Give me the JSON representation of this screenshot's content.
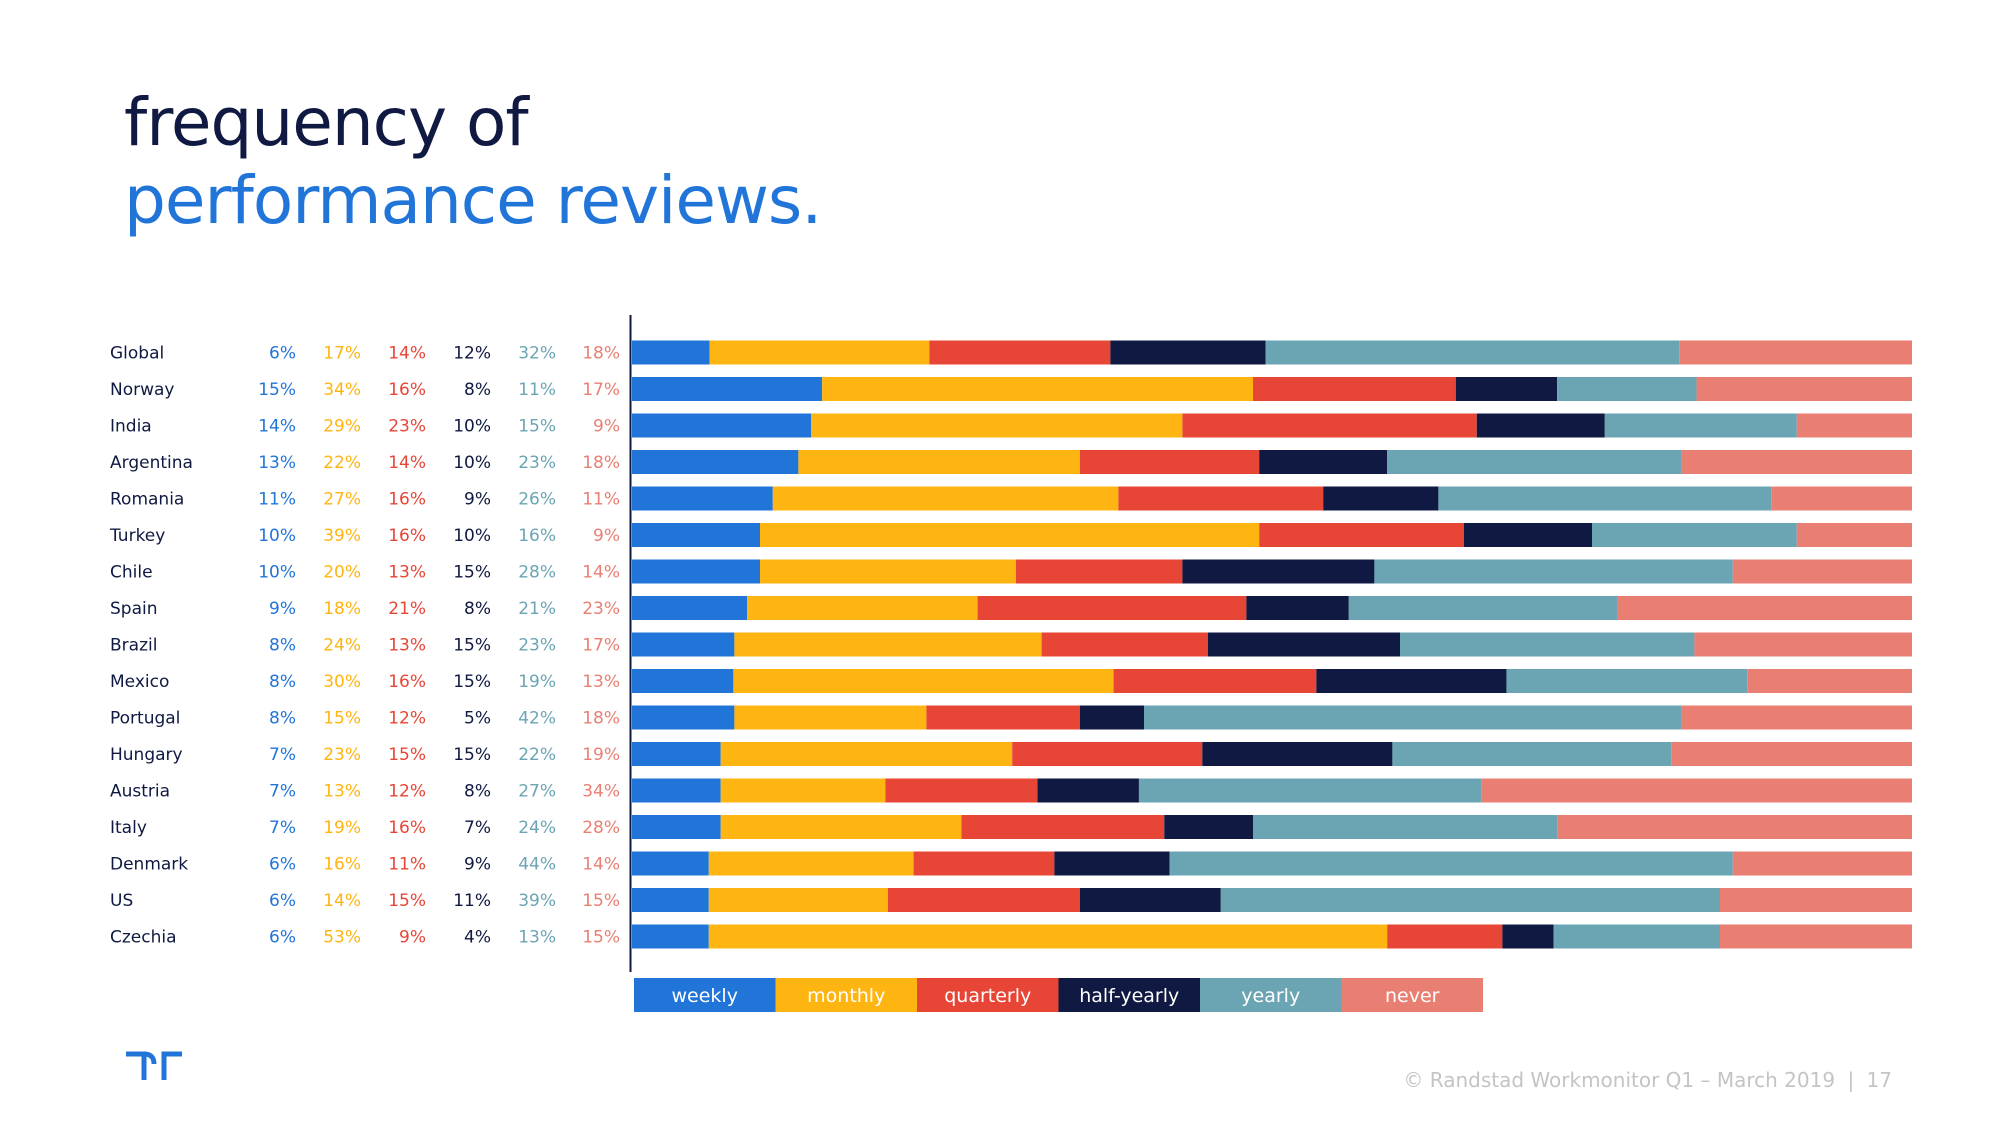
{
  "title": {
    "line1": "frequency of",
    "line2": "performance reviews."
  },
  "footer": {
    "text": "© Randstad Workmonitor Q1 – March 2019",
    "separator": "|",
    "page": "17"
  },
  "colors": {
    "weekly": "#2175d9",
    "monthly": "#ffb511",
    "quarterly": "#e74536",
    "half-yearly": "#0f1941",
    "yearly": "#6ba5b4",
    "never": "#e97f72"
  },
  "chart_data": {
    "type": "bar",
    "orientation": "horizontal",
    "stacked": true,
    "title": "frequency of performance reviews.",
    "unit": "%",
    "categories": [
      "Global",
      "Norway",
      "India",
      "Argentina",
      "Romania",
      "Turkey",
      "Chile",
      "Spain",
      "Brazil",
      "Mexico",
      "Portugal",
      "Hungary",
      "Austria",
      "Italy",
      "Denmark",
      "US",
      "Czechia"
    ],
    "series": [
      {
        "name": "weekly",
        "values": [
          6,
          15,
          14,
          13,
          11,
          10,
          10,
          9,
          8,
          8,
          8,
          7,
          7,
          7,
          6,
          6,
          6
        ]
      },
      {
        "name": "monthly",
        "values": [
          17,
          34,
          29,
          22,
          27,
          39,
          20,
          18,
          24,
          30,
          15,
          23,
          13,
          19,
          16,
          14,
          53
        ]
      },
      {
        "name": "quarterly",
        "values": [
          14,
          16,
          23,
          14,
          16,
          16,
          13,
          21,
          13,
          16,
          12,
          15,
          12,
          16,
          11,
          15,
          9
        ]
      },
      {
        "name": "half-yearly",
        "values": [
          12,
          8,
          10,
          10,
          9,
          10,
          15,
          8,
          15,
          15,
          5,
          15,
          8,
          7,
          9,
          11,
          4
        ]
      },
      {
        "name": "yearly",
        "values": [
          32,
          11,
          15,
          23,
          26,
          16,
          28,
          21,
          23,
          19,
          42,
          22,
          27,
          24,
          44,
          39,
          13
        ]
      },
      {
        "name": "never",
        "values": [
          18,
          17,
          9,
          18,
          11,
          9,
          14,
          23,
          17,
          13,
          18,
          19,
          34,
          28,
          14,
          15,
          15
        ]
      }
    ],
    "legend": [
      "weekly",
      "monthly",
      "quarterly",
      "half-yearly",
      "yearly",
      "never"
    ],
    "legend_position": "bottom"
  }
}
